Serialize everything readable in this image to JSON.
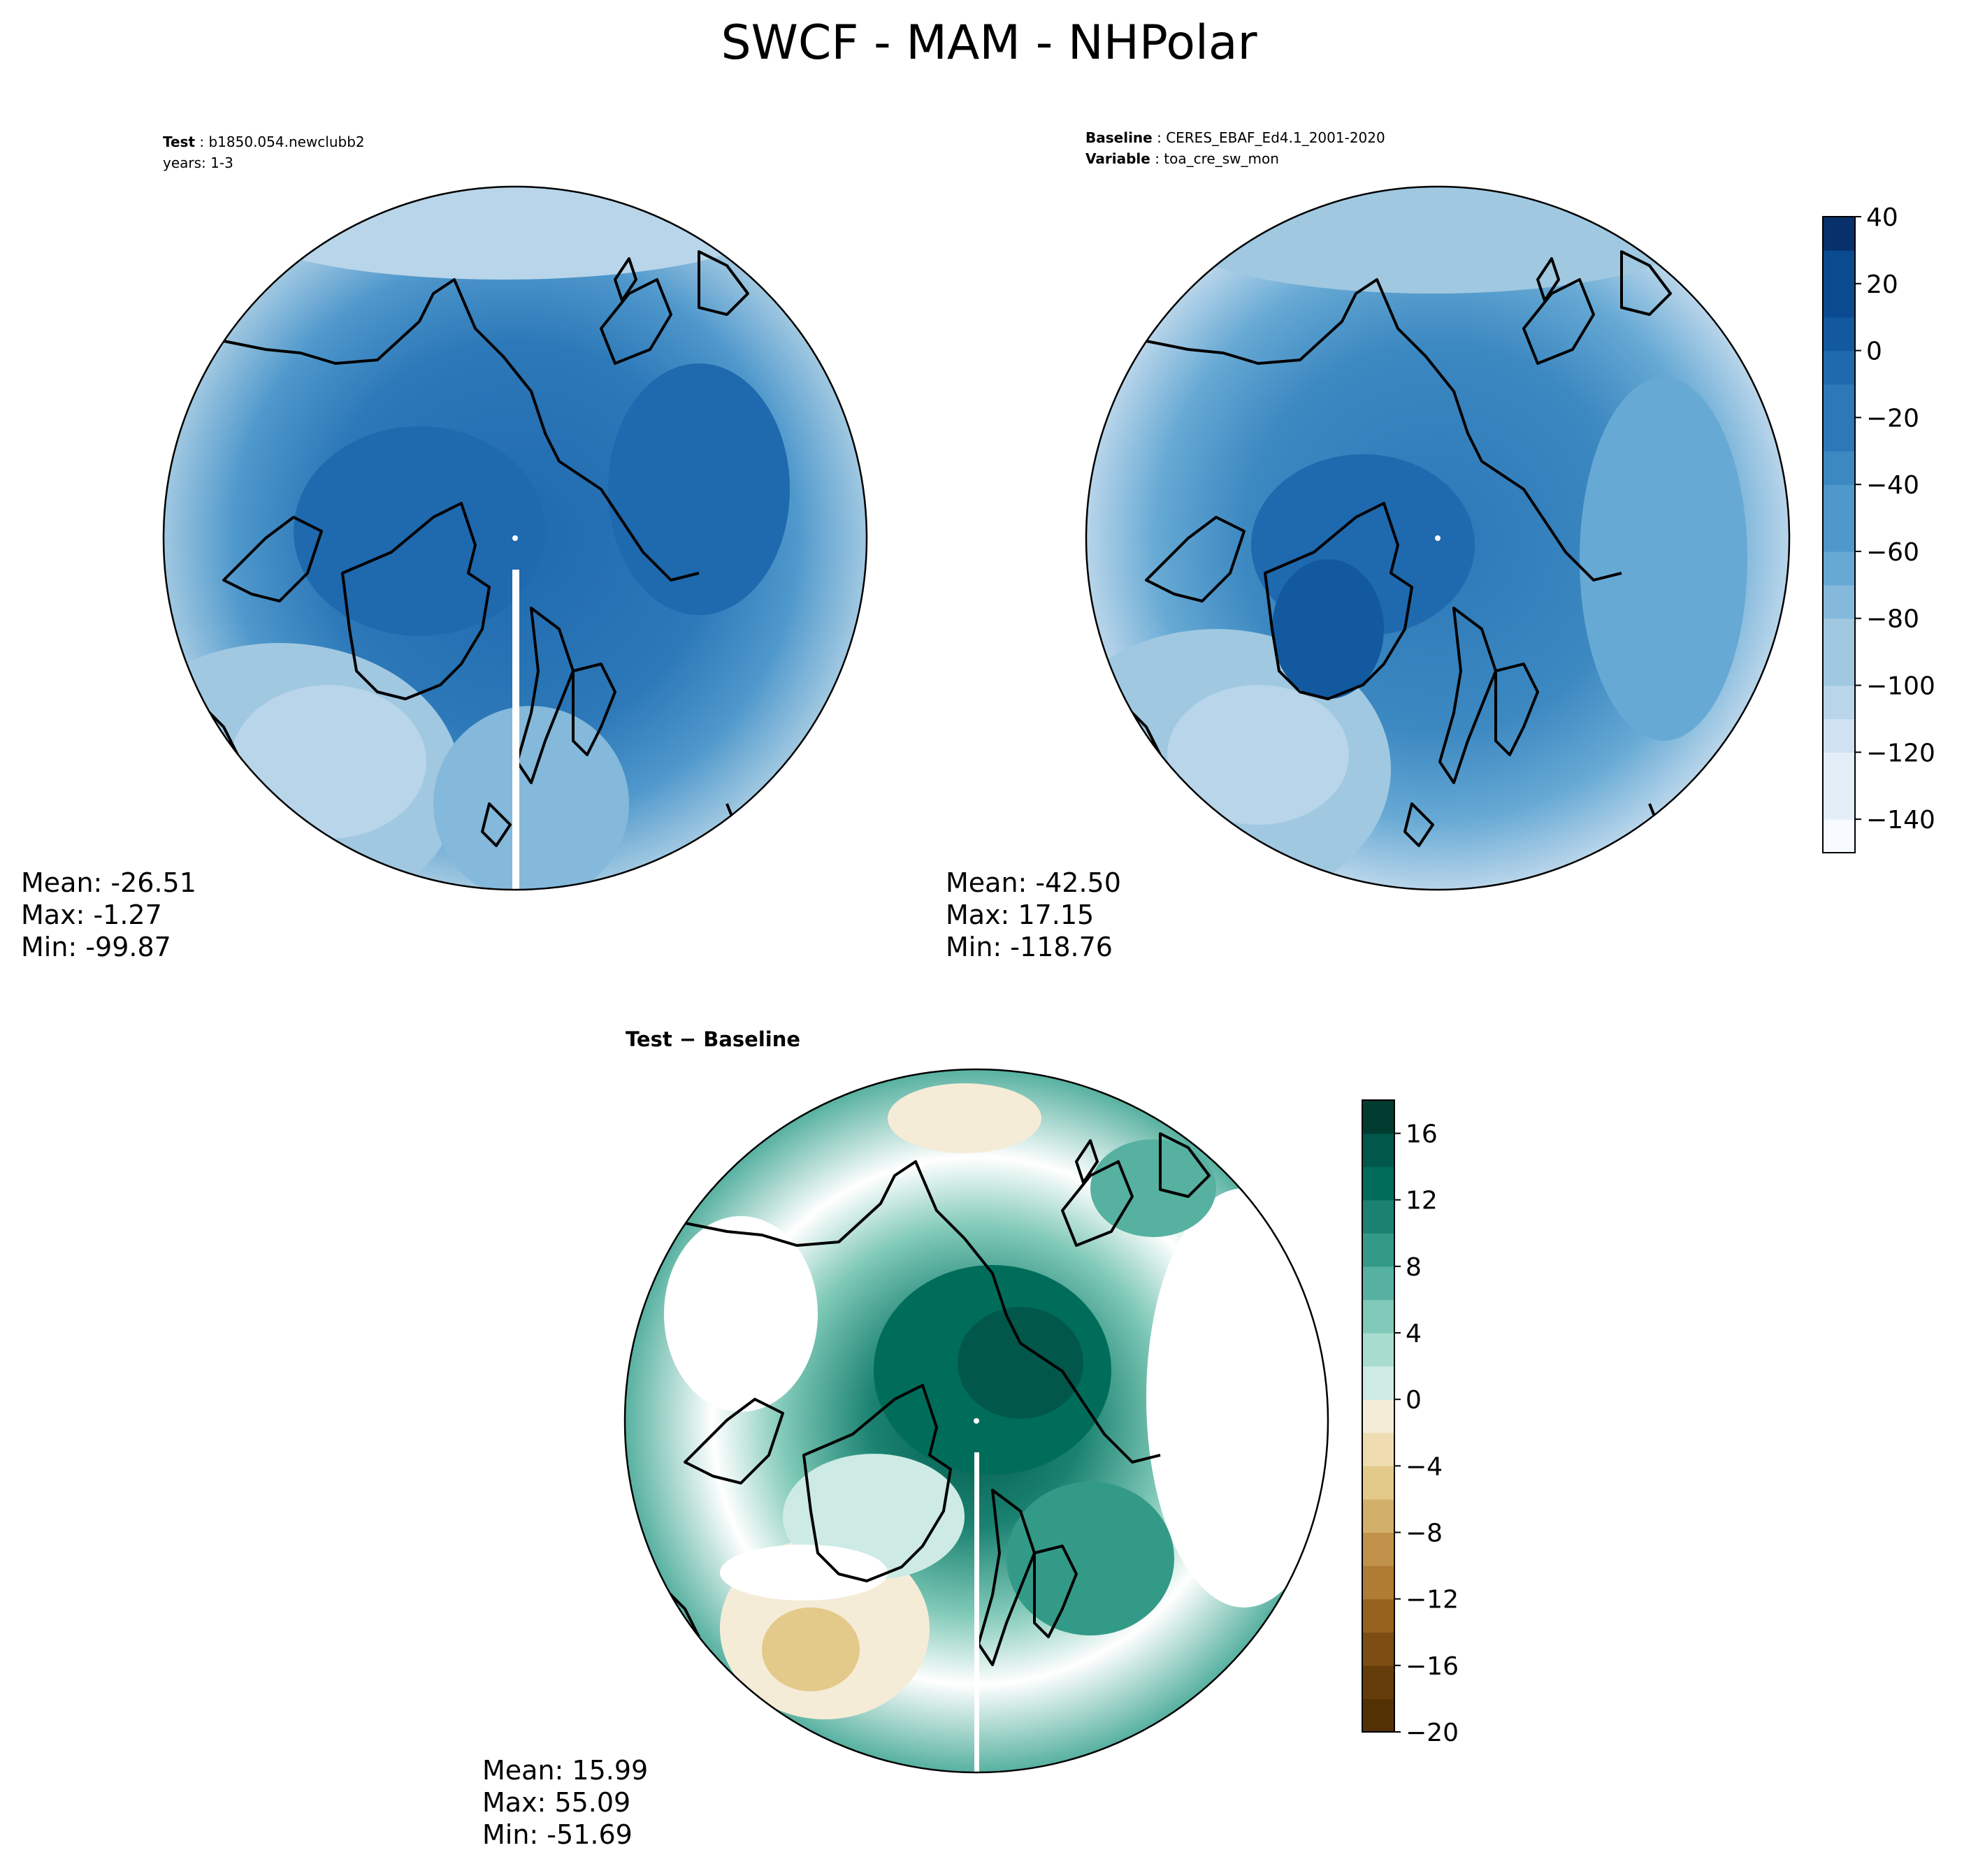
{
  "figure": {
    "title": "SWCF - MAM - NHPolar"
  },
  "test_panel": {
    "label_key": "Test",
    "label_value": "b1850.054.newclubb2",
    "years": "years: 1-3",
    "stats": {
      "mean": "Mean: -26.51",
      "max": "Max: -1.27",
      "min": "Min: -99.87"
    }
  },
  "baseline_panel": {
    "baseline_key": "Baseline",
    "baseline_value": "CERES_EBAF_Ed4.1_2001-2020",
    "variable_key": "Variable",
    "variable_value": "toa_cre_sw_mon",
    "stats": {
      "mean": "Mean: -42.50",
      "max": "Max: 17.15",
      "min": "Min: -118.76"
    }
  },
  "diff_panel": {
    "title": "Test − Baseline",
    "stats": {
      "mean": "Mean: 15.99",
      "max": "Max: 55.09",
      "min": "Min: -51.69"
    }
  },
  "chart_data": [
    {
      "type": "heatmap",
      "name": "Test",
      "projection": "north-polar-stereographic",
      "mean": -26.51,
      "max": -1.27,
      "min": -99.87,
      "colormap": "Blues",
      "colorbar": {
        "ticks": [
          40,
          20,
          0,
          -20,
          -40,
          -60,
          -80,
          -100,
          -120,
          -140
        ],
        "range": [
          -150,
          40
        ]
      }
    },
    {
      "type": "heatmap",
      "name": "Baseline",
      "projection": "north-polar-stereographic",
      "mean": -42.5,
      "max": 17.15,
      "min": -118.76,
      "colormap": "Blues",
      "colorbar": {
        "ticks": [
          40,
          20,
          0,
          -20,
          -40,
          -60,
          -80,
          -100,
          -120,
          -140
        ],
        "range": [
          -150,
          40
        ]
      }
    },
    {
      "type": "heatmap",
      "name": "Test − Baseline",
      "projection": "north-polar-stereographic",
      "mean": 15.99,
      "max": 55.09,
      "min": -51.69,
      "colormap": "BrBG",
      "colorbar": {
        "ticks": [
          16,
          12,
          8,
          4,
          0,
          -4,
          -8,
          -12,
          -16,
          -20
        ],
        "range": [
          -20,
          18
        ]
      }
    }
  ],
  "colors": {
    "blues": [
      "#f7fbff",
      "#e3eef9",
      "#d0e1f2",
      "#b8d5ea",
      "#a0c8e1",
      "#84b9db",
      "#66a9d4",
      "#4f98cc",
      "#3c88c1",
      "#2c78b8",
      "#1f69ae",
      "#13599f",
      "#0a4a8f",
      "#08306b"
    ],
    "brbg_pos": [
      "#eaf6f3",
      "#cdebe4",
      "#a8dccf",
      "#80c9b8",
      "#57b1a0",
      "#349a88",
      "#1b8271",
      "#006d5b",
      "#00574a",
      "#003c30"
    ],
    "brbg_neg": [
      "#f5ecd7",
      "#efdcb1",
      "#e3c98a",
      "#d3b06a",
      "#c2924a",
      "#b07b33",
      "#97621e",
      "#7c4e13",
      "#633c0a",
      "#543005"
    ]
  }
}
